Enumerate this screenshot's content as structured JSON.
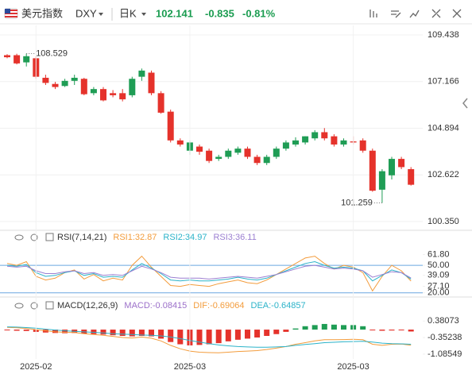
{
  "header": {
    "name": "美元指数",
    "symbol": "DXY",
    "period": "日K",
    "price": "102.141",
    "change": "-0.835",
    "change_pct": "-0.81%",
    "color": "#1a9c50"
  },
  "chart_data": [
    {
      "type": "candlestick",
      "open": [
        108.45,
        108.45,
        108.1,
        108.3,
        107.35,
        107.05,
        106.95,
        107.2,
        107.3,
        106.6,
        106.8,
        106.6,
        106.6,
        106.5,
        107.4,
        107.6,
        106.6,
        105.7,
        104.3,
        103.8,
        104.0,
        103.8,
        103.4,
        103.5,
        103.7,
        103.9,
        103.5,
        103.2,
        103.5,
        103.9,
        104.1,
        104.2,
        104.4,
        104.7,
        104.5,
        104.1,
        104.25,
        104.3,
        103.8,
        101.9,
        102.6,
        103.4,
        102.9
      ],
      "high": [
        108.5,
        108.52,
        108.529,
        108.4,
        107.5,
        107.15,
        107.3,
        107.5,
        107.35,
        106.9,
        106.9,
        106.75,
        106.8,
        107.4,
        107.8,
        107.7,
        106.7,
        105.8,
        104.4,
        104.3,
        104.1,
        103.9,
        103.6,
        103.9,
        104.0,
        104.0,
        103.6,
        103.6,
        104.0,
        104.3,
        104.45,
        104.5,
        104.8,
        104.9,
        104.6,
        104.4,
        104.5,
        104.4,
        103.9,
        102.9,
        103.5,
        103.5,
        103.0
      ],
      "low": [
        108.3,
        108.0,
        107.9,
        107.3,
        107.0,
        106.8,
        106.9,
        107.0,
        106.5,
        106.5,
        106.2,
        106.4,
        106.2,
        106.4,
        107.2,
        106.5,
        105.6,
        104.2,
        104.0,
        103.6,
        103.6,
        103.2,
        103.3,
        103.4,
        103.6,
        103.4,
        103.1,
        103.1,
        103.4,
        103.8,
        104.0,
        104.1,
        104.3,
        104.3,
        104.0,
        104.0,
        104.1,
        103.7,
        101.8,
        101.259,
        102.4,
        102.9,
        102.1
      ],
      "close": [
        108.35,
        108.05,
        108.4,
        107.4,
        107.1,
        106.9,
        107.2,
        107.35,
        106.55,
        106.8,
        106.25,
        106.5,
        106.3,
        107.3,
        107.7,
        106.6,
        105.65,
        104.3,
        104.1,
        104.2,
        103.75,
        103.3,
        103.5,
        103.8,
        103.9,
        103.5,
        103.2,
        103.5,
        103.9,
        104.2,
        104.3,
        104.5,
        104.7,
        104.4,
        104.1,
        104.3,
        104.2,
        103.8,
        101.85,
        102.8,
        103.4,
        103.0,
        102.141
      ],
      "up_color": "#1f9d55",
      "down_color": "#e5322b",
      "ylim": [
        100.0,
        109.9
      ],
      "yticks": [
        109.438,
        107.166,
        104.894,
        102.622,
        {
          "value": 100.35,
          "label": "100.350"
        }
      ],
      "annotations": [
        {
          "text": "108.529",
          "index": 2,
          "value": 108.529
        },
        {
          "text": "101.259",
          "index": 39,
          "value": 101.259
        }
      ],
      "grid": true
    },
    {
      "type": "line",
      "title": "RSI(7,14,21)",
      "series": [
        {
          "name": "RSI1",
          "legend": "RSI1:32.87",
          "color": "#f39c3c",
          "values": [
            52,
            50,
            54,
            38,
            34,
            36,
            42,
            45,
            35,
            40,
            33,
            36,
            34,
            50,
            60,
            48,
            38,
            28,
            27,
            29,
            28,
            27,
            30,
            32,
            34,
            31,
            30,
            34,
            40,
            46,
            52,
            58,
            60,
            52,
            46,
            50,
            48,
            42,
            22,
            38,
            50,
            44,
            32.87
          ]
        },
        {
          "name": "RSI2",
          "legend": "RSI2:34.97",
          "color": "#2bb3c9",
          "values": [
            50,
            49,
            51,
            42,
            38,
            39,
            42,
            44,
            39,
            41,
            37,
            38,
            37,
            45,
            52,
            47,
            41,
            34,
            33,
            34,
            33,
            33,
            34,
            35,
            37,
            35,
            34,
            36,
            40,
            44,
            48,
            52,
            54,
            50,
            47,
            48,
            47,
            44,
            33,
            39,
            45,
            42,
            34.97
          ]
        },
        {
          "name": "RSI3",
          "legend": "RSI3:36.11",
          "color": "#9b7fd1",
          "values": [
            49,
            48,
            49,
            44,
            41,
            41,
            43,
            44,
            41,
            42,
            39,
            40,
            39,
            44,
            49,
            46,
            42,
            37,
            36,
            36,
            36,
            35,
            36,
            37,
            38,
            37,
            36,
            38,
            40,
            43,
            46,
            49,
            50,
            48,
            46,
            47,
            46,
            44,
            37,
            40,
            43,
            42,
            36.11
          ]
        }
      ],
      "ylim": [
        18,
        64
      ],
      "yticks": [
        {
          "value": 61.8,
          "label": "61.80"
        },
        {
          "value": 50,
          "label": "50.00"
        },
        39.09,
        {
          "value": 27.1,
          "label": "27.10"
        },
        {
          "value": 20,
          "label": "20.00"
        }
      ],
      "band_lines": [
        50,
        20
      ],
      "band_color": "#6aa6e0"
    },
    {
      "type": "macd",
      "title": "MACD(12,26,9)",
      "histogram": {
        "legend": "MACD:-0.08415",
        "color": "#9b6fc9",
        "up_color": "#1f9d55",
        "down_color": "#e5322b",
        "values": [
          -0.03,
          -0.05,
          -0.06,
          -0.1,
          -0.13,
          -0.15,
          -0.16,
          -0.15,
          -0.18,
          -0.2,
          -0.22,
          -0.25,
          -0.28,
          -0.3,
          -0.28,
          -0.3,
          -0.4,
          -0.55,
          -0.65,
          -0.7,
          -0.68,
          -0.65,
          -0.6,
          -0.52,
          -0.45,
          -0.4,
          -0.35,
          -0.28,
          -0.2,
          -0.1,
          0.05,
          0.15,
          0.2,
          0.25,
          0.22,
          0.2,
          0.2,
          0.15,
          -0.02,
          -0.05,
          -0.04,
          -0.03,
          -0.08415
        ]
      },
      "series": [
        {
          "name": "DIF",
          "legend": "DIF:-0.69064",
          "color": "#f39c3c",
          "values": [
            0.1,
            0.08,
            0.05,
            0,
            -0.05,
            -0.1,
            -0.12,
            -0.13,
            -0.18,
            -0.22,
            -0.25,
            -0.3,
            -0.35,
            -0.37,
            -0.33,
            -0.38,
            -0.5,
            -0.7,
            -0.85,
            -0.95,
            -1.0,
            -1.02,
            -1.03,
            -1.0,
            -0.97,
            -0.95,
            -0.93,
            -0.88,
            -0.82,
            -0.75,
            -0.65,
            -0.58,
            -0.5,
            -0.45,
            -0.45,
            -0.44,
            -0.43,
            -0.45,
            -0.65,
            -0.7,
            -0.65,
            -0.64,
            -0.69064
          ]
        },
        {
          "name": "DEA",
          "legend": "DEA:-0.64857",
          "color": "#2bb3c9",
          "values": [
            0.12,
            0.11,
            0.09,
            0.06,
            0.02,
            -0.02,
            -0.05,
            -0.08,
            -0.1,
            -0.12,
            -0.15,
            -0.18,
            -0.2,
            -0.22,
            -0.24,
            -0.25,
            -0.28,
            -0.33,
            -0.4,
            -0.48,
            -0.55,
            -0.62,
            -0.68,
            -0.72,
            -0.75,
            -0.77,
            -0.78,
            -0.78,
            -0.77,
            -0.75,
            -0.7,
            -0.66,
            -0.62,
            -0.58,
            -0.56,
            -0.54,
            -0.53,
            -0.52,
            -0.55,
            -0.6,
            -0.62,
            -0.63,
            -0.64857
          ]
        }
      ],
      "ylim": [
        -1.3,
        0.6
      ],
      "yticks": [
        0.38073,
        -0.35238,
        -1.08549
      ],
      "xticks": [
        {
          "value": 3,
          "label": "2025-02"
        },
        {
          "value": 19,
          "label": "2025-03"
        },
        {
          "value": 36,
          "label": "2025-03"
        }
      ]
    }
  ]
}
